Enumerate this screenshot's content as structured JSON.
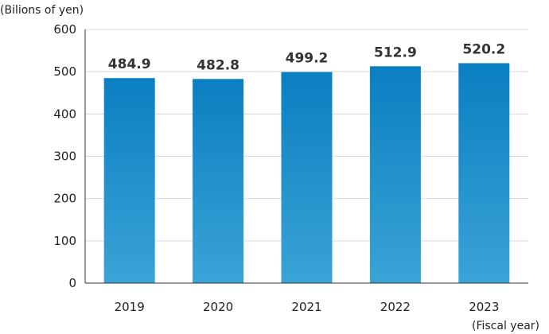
{
  "chart_data": {
    "type": "bar",
    "categories": [
      "2019",
      "2020",
      "2021",
      "2022",
      "2023"
    ],
    "values": [
      484.9,
      482.8,
      499.2,
      512.9,
      520.2
    ],
    "data_labels": [
      "484.9",
      "482.8",
      "499.2",
      "512.9",
      "520.2"
    ],
    "ylabel": "(Bilions of yen)",
    "xlabel": "(Fiscal year)",
    "ylim": [
      0,
      600
    ],
    "yticks": [
      0,
      100,
      200,
      300,
      400,
      500,
      600
    ],
    "grid": true,
    "bar_color_top": "#0a7fc1",
    "bar_color_bottom": "#3aa3d6"
  }
}
